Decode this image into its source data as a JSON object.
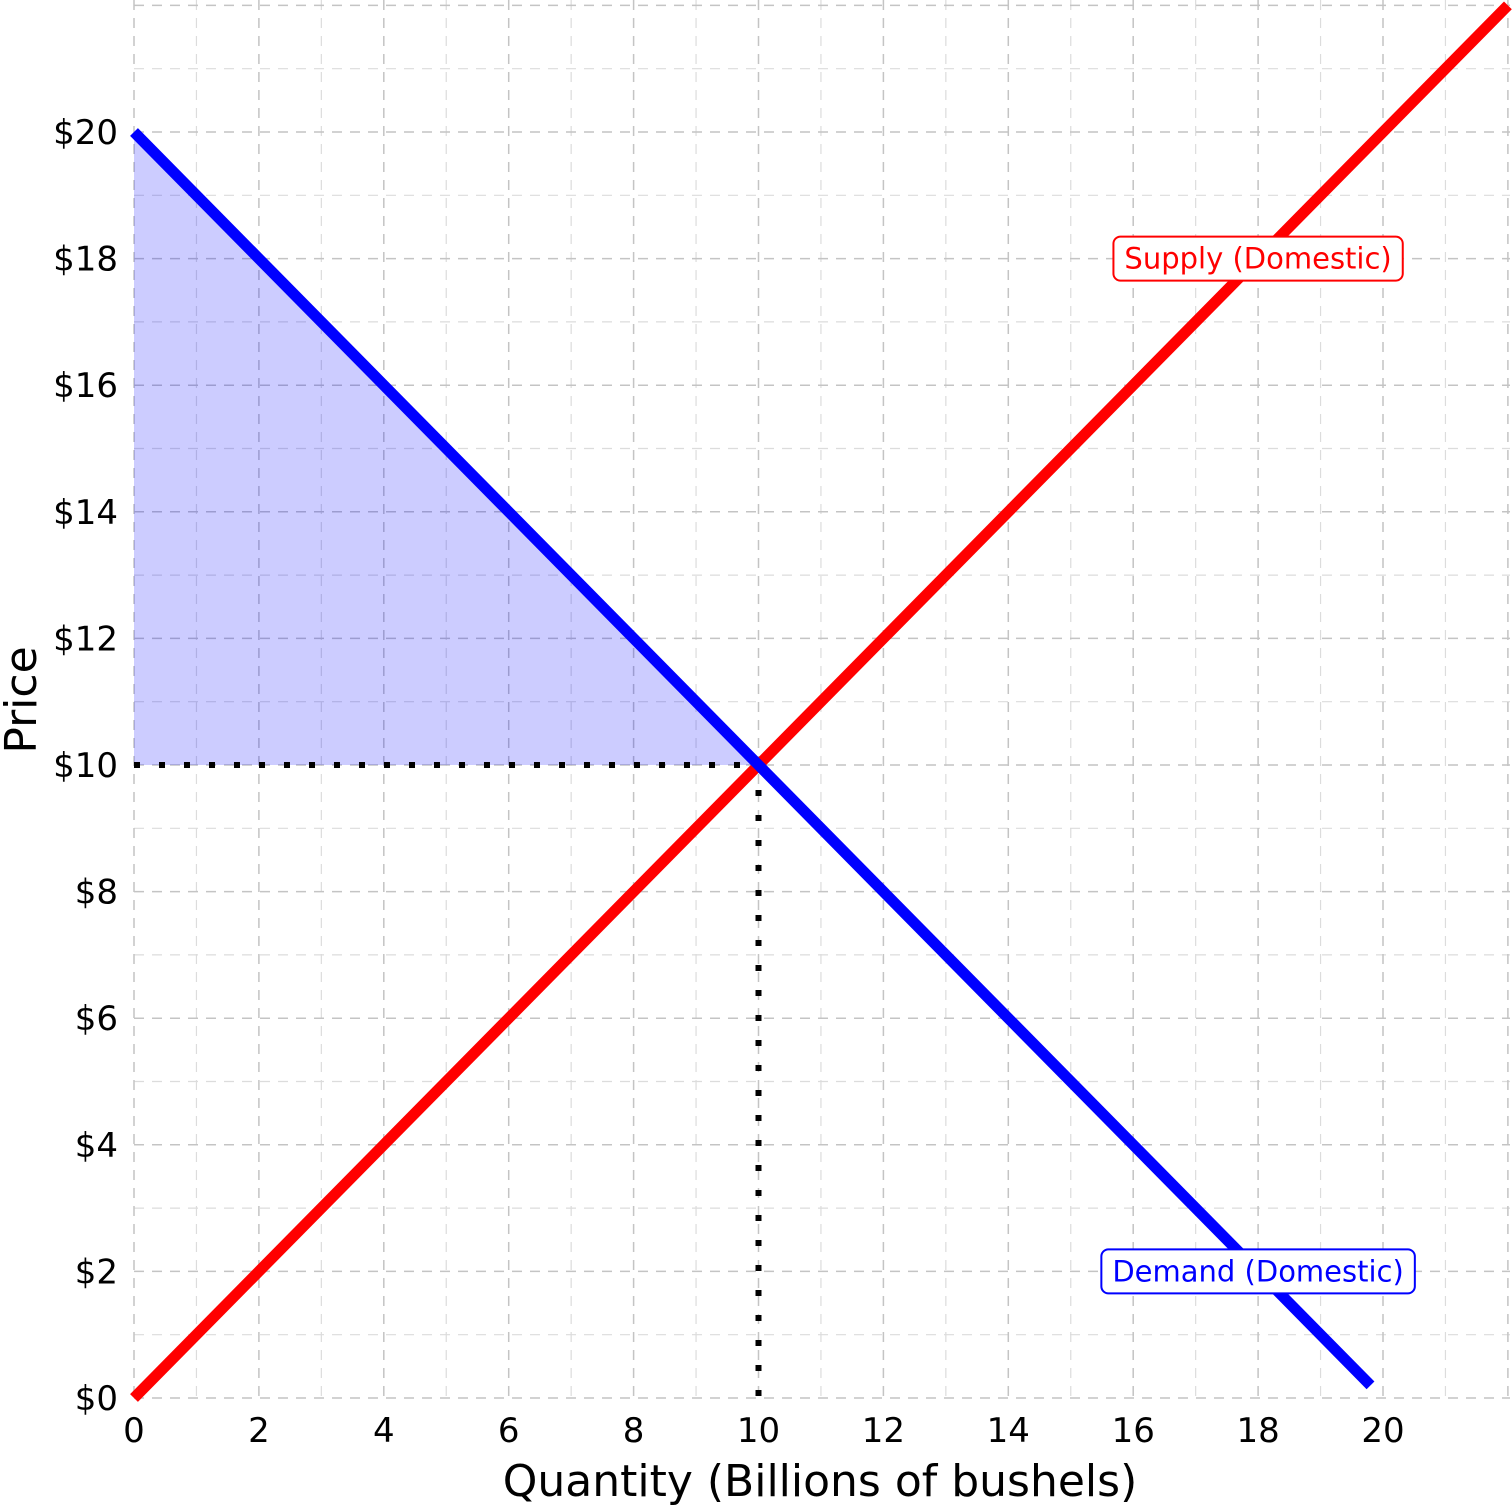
{
  "chart_data": {
    "type": "line",
    "xlabel": "Quantity (Billions of bushels)",
    "ylabel": "Price",
    "xlim": [
      0,
      22
    ],
    "ylim": [
      0,
      20
    ],
    "x_ticks": [
      0,
      2,
      4,
      6,
      8,
      10,
      12,
      14,
      16,
      18,
      20
    ],
    "x_tick_labels": [
      "0",
      "2",
      "4",
      "6",
      "8",
      "10",
      "12",
      "14",
      "16",
      "18",
      "20"
    ],
    "y_ticks": [
      0,
      2,
      4,
      6,
      8,
      10,
      12,
      14,
      16,
      18,
      20
    ],
    "y_tick_labels": [
      "$0",
      "$2",
      "$4",
      "$6",
      "$8",
      "$10",
      "$12",
      "$14",
      "$16",
      "$18",
      "$20"
    ],
    "grid": true,
    "series": [
      {
        "name": "Supply (Domestic)",
        "color": "#ff0000",
        "points": [
          [
            0,
            0
          ],
          [
            22,
            22
          ]
        ],
        "label": {
          "text": "Supply (Domestic)",
          "x": 18,
          "y": 18
        }
      },
      {
        "name": "Demand (Domestic)",
        "color": "#0000ff",
        "points": [
          [
            0,
            20
          ],
          [
            19.8,
            0.2
          ]
        ],
        "label": {
          "text": "Demand (Domestic)",
          "x": 18,
          "y": 2
        }
      }
    ],
    "equilibrium": {
      "quantity": 10,
      "price": 10
    },
    "shaded_region": {
      "name": "consumer-surplus",
      "color": "#0000ff",
      "opacity": 0.2,
      "points": [
        [
          0,
          20
        ],
        [
          10,
          10
        ],
        [
          0,
          10
        ]
      ]
    }
  }
}
